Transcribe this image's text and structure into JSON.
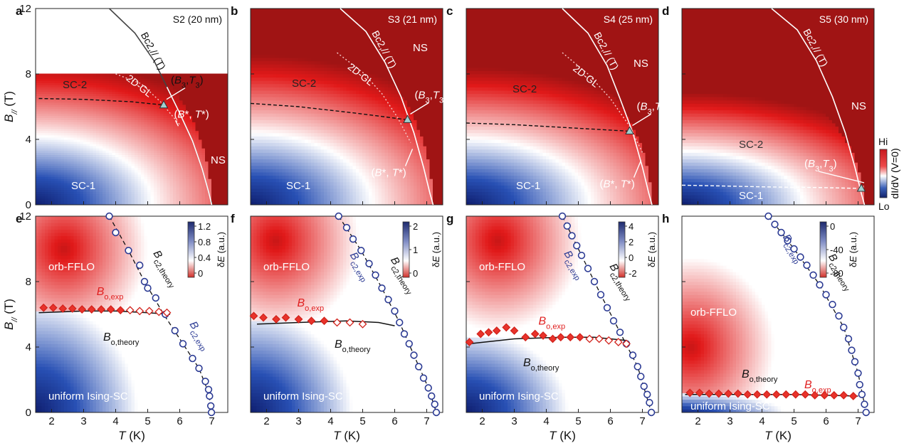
{
  "figure": {
    "colorbar_top": {
      "hi": "Hi",
      "lo": "Lo",
      "label": "dI/dV (V=0)"
    }
  },
  "chart_data": [
    {
      "panel": "a",
      "type": "heatmap",
      "sample": "S2 (20 nm)",
      "xlim": [
        1.5,
        7.5
      ],
      "ylim": [
        0,
        12
      ],
      "map_ymax": 8,
      "xticks": [
        2,
        3,
        4,
        5,
        6,
        7
      ],
      "yticks": [
        0,
        4,
        8,
        12
      ],
      "ylabel": "B//",
      "ylabel_unit": "(T)",
      "Tc0": 7.0,
      "field_at_2K": 11.5,
      "bc2_line": [
        [
          3.8,
          12.0
        ],
        [
          4.6,
          10.5
        ],
        [
          5.2,
          8.8
        ],
        [
          5.6,
          7.2
        ],
        [
          6.0,
          5.6
        ],
        [
          6.4,
          3.9
        ],
        [
          6.7,
          2.2
        ],
        [
          6.9,
          0.8
        ],
        [
          7.0,
          0.0
        ]
      ],
      "bc2_label": "Bc2,// (T)",
      "gl_line": [
        [
          4.0,
          8.0
        ],
        [
          4.8,
          7.4
        ],
        [
          5.4,
          6.3
        ],
        [
          6.0,
          4.9
        ]
      ],
      "gl_label": "2D-GL",
      "bo_line": [
        [
          1.6,
          6.5
        ],
        [
          3.0,
          6.45
        ],
        [
          4.5,
          6.3
        ],
        [
          5.5,
          6.1
        ]
      ],
      "B3T3": [
        5.5,
        6.1
      ],
      "BstarTstar": [
        6.0,
        4.9
      ],
      "labels": {
        "b3t3": "(B3,T3)",
        "bstar": "(B*, T*)",
        "sc1": "SC-1",
        "sc2": "SC-2",
        "ns": "NS"
      }
    },
    {
      "panel": "b",
      "type": "heatmap",
      "sample": "S3 (21 nm)",
      "xlim": [
        1.5,
        7.5
      ],
      "ylim": [
        0,
        12
      ],
      "map_ymax": 12,
      "xticks": [
        2,
        3,
        4,
        5,
        6,
        7
      ],
      "yticks": [
        0,
        4,
        8,
        12
      ],
      "Tc0": 7.2,
      "field_at_2K": 12.0,
      "bc2_line": [
        [
          4.3,
          12.0
        ],
        [
          5.1,
          10.6
        ],
        [
          5.7,
          8.7
        ],
        [
          6.2,
          6.6
        ],
        [
          6.6,
          4.4
        ],
        [
          6.9,
          2.3
        ],
        [
          7.1,
          0.7
        ],
        [
          7.2,
          0.0
        ]
      ],
      "bc2_label": "Bc2,// (T)",
      "gl_line": [
        [
          4.2,
          9.3
        ],
        [
          5.0,
          8.1
        ],
        [
          5.6,
          6.8
        ],
        [
          6.1,
          5.3
        ],
        [
          6.5,
          3.8
        ]
      ],
      "gl_label": "2D-GL",
      "bo_line": [
        [
          1.5,
          6.2
        ],
        [
          3.0,
          6.0
        ],
        [
          4.8,
          5.6
        ],
        [
          6.4,
          5.2
        ]
      ],
      "B3T3": [
        6.4,
        5.2
      ],
      "BstarTstar": [
        6.6,
        3.5
      ],
      "labels": {
        "b3t3": "(B3,T3)",
        "bstar": "(B*, T*)",
        "sc1": "SC-1",
        "sc2": "SC-2",
        "ns": "NS"
      }
    },
    {
      "panel": "c",
      "type": "heatmap",
      "sample": "S4 (25 nm)",
      "xlim": [
        1.5,
        7.5
      ],
      "ylim": [
        0,
        12
      ],
      "map_ymax": 12,
      "xticks": [
        2,
        3,
        4,
        5,
        6,
        7
      ],
      "yticks": [
        0,
        4,
        8,
        12
      ],
      "Tc0": 7.3,
      "field_at_2K": 11.0,
      "bc2_line": [
        [
          4.5,
          12.0
        ],
        [
          5.3,
          10.5
        ],
        [
          5.9,
          8.5
        ],
        [
          6.3,
          6.5
        ],
        [
          6.7,
          4.4
        ],
        [
          7.0,
          2.3
        ],
        [
          7.2,
          0.7
        ],
        [
          7.3,
          0.0
        ]
      ],
      "bc2_label": "Bc2,// (T)",
      "gl_line": [
        [
          4.5,
          9.3
        ],
        [
          5.3,
          8.0
        ],
        [
          6.0,
          6.5
        ],
        [
          6.6,
          4.8
        ],
        [
          7.0,
          3.2
        ]
      ],
      "gl_label": "2D-GL",
      "bo_line": [
        [
          1.5,
          5.0
        ],
        [
          3.0,
          4.9
        ],
        [
          4.8,
          4.7
        ],
        [
          6.6,
          4.5
        ]
      ],
      "B3T3": [
        6.6,
        4.5
      ],
      "BstarTstar": [
        7.0,
        2.8
      ],
      "labels": {
        "b3t3": "(B3,T3)",
        "bstar": "(B*, T*)",
        "sc1": "SC-1",
        "sc2": "SC-2",
        "ns": "NS"
      }
    },
    {
      "panel": "d",
      "type": "heatmap",
      "sample": "S5 (30 nm)",
      "xlim": [
        1.5,
        7.5
      ],
      "ylim": [
        0,
        12
      ],
      "map_ymax": 12,
      "xticks": [
        2,
        3,
        4,
        5,
        6,
        7
      ],
      "yticks": [
        0,
        4,
        8,
        12
      ],
      "Tc0": 7.2,
      "field_at_2K": 9.0,
      "bc2_line": [
        [
          4.3,
          12.0
        ],
        [
          5.1,
          10.7
        ],
        [
          5.7,
          8.8
        ],
        [
          6.2,
          6.6
        ],
        [
          6.6,
          4.4
        ],
        [
          6.9,
          2.3
        ],
        [
          7.1,
          0.7
        ],
        [
          7.2,
          0.0
        ]
      ],
      "bc2_label": "Bc2,// (T)",
      "bo_line": [
        [
          1.5,
          1.2
        ],
        [
          4.0,
          1.1
        ],
        [
          6.0,
          1.05
        ],
        [
          7.1,
          1.0
        ]
      ],
      "B3T3": [
        7.1,
        1.0
      ],
      "labels": {
        "b3t3": "(B3,T3)",
        "sc1": "SC-1",
        "sc2": "SC-2",
        "ns": "NS"
      }
    },
    {
      "panel": "e",
      "type": "heatmap",
      "overlay": "scatter",
      "xlim": [
        1.5,
        7.5
      ],
      "ylim": [
        0,
        12
      ],
      "xticks": [
        2,
        3,
        4,
        5,
        6,
        7
      ],
      "yticks": [
        0,
        4,
        8,
        12
      ],
      "xlabel": "T",
      "xlabel_unit": "(K)",
      "ylabel": "B//",
      "ylabel_unit": "(T)",
      "colorbar": {
        "ticks": [
          "1.2",
          "0.8",
          "0.4",
          "0"
        ],
        "label": "δE (a.u.)",
        "range": [
          -0.3,
          1.3
        ]
      },
      "redPeak": [
        2.4,
        10.0
      ],
      "bc2_exp": [
        [
          3.8,
          12.0
        ],
        [
          4.0,
          11.0
        ],
        [
          4.4,
          9.9
        ],
        [
          4.75,
          9.0
        ],
        [
          4.9,
          8.0
        ],
        [
          5.0,
          7.6
        ],
        [
          5.25,
          7.0
        ],
        [
          5.55,
          6.0
        ],
        [
          5.85,
          5.0
        ],
        [
          6.1,
          4.2
        ],
        [
          6.4,
          3.3
        ],
        [
          6.6,
          2.7
        ],
        [
          6.8,
          1.9
        ],
        [
          6.9,
          1.4
        ],
        [
          6.93,
          1.0
        ],
        [
          6.97,
          0.4
        ],
        [
          6.99,
          0.0
        ]
      ],
      "bc2_theory": [
        [
          3.8,
          12.0
        ],
        [
          4.4,
          9.9
        ],
        [
          4.9,
          8.0
        ],
        [
          5.5,
          6.0
        ],
        [
          6.1,
          4.2
        ],
        [
          6.6,
          2.7
        ],
        [
          6.9,
          1.2
        ],
        [
          7.0,
          0.0
        ]
      ],
      "bo_theory": [
        [
          1.6,
          6.1
        ],
        [
          3.0,
          6.2
        ],
        [
          4.0,
          6.2
        ],
        [
          5.0,
          6.1
        ],
        [
          5.7,
          6.0
        ]
      ],
      "bo_exp": [
        [
          1.75,
          6.4
        ],
        [
          2.05,
          6.4
        ],
        [
          2.35,
          6.35
        ],
        [
          2.65,
          6.35
        ],
        [
          2.95,
          6.3
        ],
        [
          3.25,
          6.3
        ],
        [
          3.55,
          6.3
        ],
        [
          3.85,
          6.3
        ],
        [
          4.15,
          6.25
        ],
        [
          4.45,
          6.25
        ],
        [
          4.75,
          6.2
        ],
        [
          5.05,
          6.2
        ],
        [
          5.35,
          6.15
        ],
        [
          5.6,
          6.1
        ]
      ],
      "bo_exp_hollow_from": 9,
      "labels": {
        "orb": "orb-FFLO",
        "uni": "uniform Ising-SC",
        "bc2exp": "Bc2,exp",
        "bc2th": "Bc2,theory",
        "boexp": "Bo,exp",
        "both": "Bo,theory"
      }
    },
    {
      "panel": "f",
      "type": "heatmap",
      "overlay": "scatter",
      "xlim": [
        1.5,
        7.5
      ],
      "ylim": [
        0,
        12
      ],
      "xticks": [
        2,
        3,
        4,
        5,
        6,
        7
      ],
      "yticks": [
        0,
        4,
        8,
        12
      ],
      "xlabel": "T",
      "xlabel_unit": "(K)",
      "colorbar": {
        "ticks": [
          "2",
          "1",
          "0"
        ],
        "label": "δE (a.u.)",
        "range": [
          -0.5,
          2.5
        ]
      },
      "redPeak": [
        2.3,
        10.5
      ],
      "bc2_exp": [
        [
          4.25,
          12.0
        ],
        [
          4.5,
          11.3
        ],
        [
          4.7,
          10.6
        ],
        [
          4.95,
          9.9
        ],
        [
          5.2,
          9.1
        ],
        [
          5.4,
          8.4
        ],
        [
          5.6,
          7.6
        ],
        [
          5.8,
          6.9
        ],
        [
          6.0,
          6.2
        ],
        [
          6.15,
          5.5
        ],
        [
          6.3,
          4.8
        ],
        [
          6.45,
          4.2
        ],
        [
          6.6,
          3.5
        ],
        [
          6.75,
          2.8
        ],
        [
          6.9,
          2.1
        ],
        [
          7.05,
          1.5
        ],
        [
          7.15,
          1.0
        ],
        [
          7.25,
          0.5
        ],
        [
          7.3,
          0.0
        ]
      ],
      "bc2_theory": [
        [
          4.25,
          12.0
        ],
        [
          4.95,
          9.9
        ],
        [
          5.6,
          7.6
        ],
        [
          6.15,
          5.5
        ],
        [
          6.6,
          3.5
        ],
        [
          7.05,
          1.5
        ],
        [
          7.3,
          0.0
        ]
      ],
      "bo_theory": [
        [
          1.7,
          5.4
        ],
        [
          3.0,
          5.5
        ],
        [
          4.5,
          5.6
        ],
        [
          5.5,
          5.5
        ],
        [
          6.0,
          5.3
        ]
      ],
      "bo_exp": [
        [
          1.6,
          5.9
        ],
        [
          1.9,
          5.8
        ],
        [
          2.3,
          5.7
        ],
        [
          2.6,
          5.8
        ],
        [
          3.0,
          5.7
        ],
        [
          3.4,
          5.6
        ],
        [
          3.8,
          5.6
        ],
        [
          4.2,
          5.5
        ],
        [
          4.6,
          5.5
        ],
        [
          5.0,
          5.4
        ]
      ],
      "bo_exp_hollow_from": 7,
      "labels": {
        "orb": "orb-FFLO",
        "uni": "uniform Ising-SC",
        "bc2exp": "Bc2,exp",
        "bc2th": "Bc2,theory",
        "boexp": "Bo,exp",
        "both": "Bo,theory"
      }
    },
    {
      "panel": "g",
      "type": "heatmap",
      "overlay": "scatter",
      "xlim": [
        1.5,
        7.5
      ],
      "ylim": [
        0,
        12
      ],
      "xticks": [
        2,
        3,
        4,
        5,
        6,
        7
      ],
      "yticks": [
        0,
        4,
        8,
        12
      ],
      "xlabel": "T",
      "xlabel_unit": "(K)",
      "colorbar": {
        "ticks": [
          "4",
          "2",
          "0",
          "-2"
        ],
        "label": "δE (a.u.)",
        "range": [
          -2.5,
          4.8
        ]
      },
      "redPeak": [
        2.5,
        10.5
      ],
      "bc2_exp": [
        [
          4.5,
          12.0
        ],
        [
          4.65,
          11.4
        ],
        [
          4.8,
          10.8
        ],
        [
          4.95,
          10.2
        ],
        [
          5.1,
          9.6
        ],
        [
          5.3,
          8.8
        ],
        [
          5.5,
          8.0
        ],
        [
          5.7,
          7.2
        ],
        [
          5.9,
          6.4
        ],
        [
          6.1,
          5.6
        ],
        [
          6.3,
          4.9
        ],
        [
          6.5,
          4.2
        ],
        [
          6.7,
          3.5
        ],
        [
          6.85,
          2.8
        ],
        [
          6.95,
          2.2
        ],
        [
          7.05,
          1.6
        ],
        [
          7.15,
          1.1
        ],
        [
          7.22,
          0.6
        ],
        [
          7.28,
          0.0
        ]
      ],
      "bc2_theory": [
        [
          4.5,
          12.0
        ],
        [
          5.1,
          9.6
        ],
        [
          5.7,
          7.2
        ],
        [
          6.3,
          4.9
        ],
        [
          6.85,
          2.8
        ],
        [
          7.28,
          0.0
        ]
      ],
      "bo_theory": [
        [
          1.6,
          4.2
        ],
        [
          3.0,
          4.5
        ],
        [
          4.5,
          4.6
        ],
        [
          5.5,
          4.6
        ],
        [
          6.5,
          4.4
        ]
      ],
      "bo_exp": [
        [
          1.6,
          4.3
        ],
        [
          1.95,
          4.8
        ],
        [
          2.2,
          4.9
        ],
        [
          2.45,
          5.0
        ],
        [
          2.75,
          5.2
        ],
        [
          3.0,
          5.0
        ],
        [
          3.35,
          4.6
        ],
        [
          3.65,
          4.8
        ],
        [
          3.9,
          4.7
        ],
        [
          4.2,
          4.5
        ],
        [
          4.45,
          4.6
        ],
        [
          4.75,
          4.6
        ],
        [
          5.05,
          4.6
        ],
        [
          5.35,
          4.5
        ],
        [
          5.65,
          4.5
        ],
        [
          5.95,
          4.4
        ],
        [
          6.25,
          4.3
        ],
        [
          6.5,
          4.2
        ]
      ],
      "bo_exp_hollow_from": 13,
      "labels": {
        "orb": "orb-FFLO",
        "uni": "uniform Ising-SC",
        "bc2exp": "Bc2,exp",
        "bc2th": "Bc2,theory",
        "boexp": "Bo,exp",
        "both": "Bo,theory"
      }
    },
    {
      "panel": "h",
      "type": "heatmap",
      "overlay": "scatter",
      "xlim": [
        1.5,
        7.5
      ],
      "ylim": [
        0,
        12
      ],
      "xticks": [
        2,
        3,
        4,
        5,
        6,
        7
      ],
      "yticks": [
        0,
        4,
        8,
        12
      ],
      "xlabel": "T",
      "xlabel_unit": "(K)",
      "colorbar": {
        "ticks": [
          "0",
          "-40",
          "-80"
        ],
        "label": "δE (a.u.)",
        "range": [
          -95,
          10
        ]
      },
      "redPeak": [
        1.8,
        4.0
      ],
      "bc2_exp": [
        [
          4.2,
          12.0
        ],
        [
          4.4,
          11.5
        ],
        [
          4.6,
          11.0
        ],
        [
          4.8,
          10.5
        ],
        [
          5.0,
          10.0
        ],
        [
          5.2,
          9.5
        ],
        [
          5.4,
          9.0
        ],
        [
          5.6,
          8.4
        ],
        [
          5.8,
          7.8
        ],
        [
          6.0,
          7.2
        ],
        [
          6.2,
          6.6
        ],
        [
          6.4,
          5.9
        ],
        [
          6.55,
          5.2
        ],
        [
          6.7,
          4.5
        ],
        [
          6.8,
          3.8
        ],
        [
          6.9,
          3.1
        ],
        [
          7.0,
          2.4
        ],
        [
          7.05,
          1.7
        ],
        [
          7.12,
          1.1
        ],
        [
          7.2,
          0.5
        ],
        [
          7.25,
          0.0
        ]
      ],
      "bc2_theory": [
        [
          4.2,
          12.0
        ],
        [
          5.0,
          10.0
        ],
        [
          5.8,
          7.8
        ],
        [
          6.55,
          5.2
        ],
        [
          7.0,
          2.4
        ],
        [
          7.25,
          0.0
        ]
      ],
      "bo_theory": [
        [
          1.6,
          1.1
        ],
        [
          3.0,
          1.1
        ],
        [
          5.0,
          1.1
        ],
        [
          7.0,
          1.0
        ]
      ],
      "bo_exp": [
        [
          1.75,
          1.2
        ],
        [
          2.05,
          1.2
        ],
        [
          2.35,
          1.15
        ],
        [
          2.65,
          1.15
        ],
        [
          2.95,
          1.15
        ],
        [
          3.25,
          1.15
        ],
        [
          3.55,
          1.1
        ],
        [
          3.85,
          1.1
        ],
        [
          4.15,
          1.1
        ],
        [
          4.45,
          1.1
        ],
        [
          4.75,
          1.1
        ],
        [
          5.05,
          1.1
        ],
        [
          5.35,
          1.1
        ],
        [
          5.65,
          1.05
        ],
        [
          5.95,
          1.05
        ],
        [
          6.25,
          1.05
        ],
        [
          6.55,
          1.05
        ],
        [
          6.85,
          1.0
        ]
      ],
      "bo_exp_hollow_from": 99,
      "labels": {
        "orb": "orb-FFLO",
        "uni": "uniform Ising-SC",
        "bc2exp": "Bc2,exp",
        "bc2th": "Bc2,theory",
        "boexp": "Bo,exp",
        "both": "Bo,theory"
      }
    }
  ]
}
